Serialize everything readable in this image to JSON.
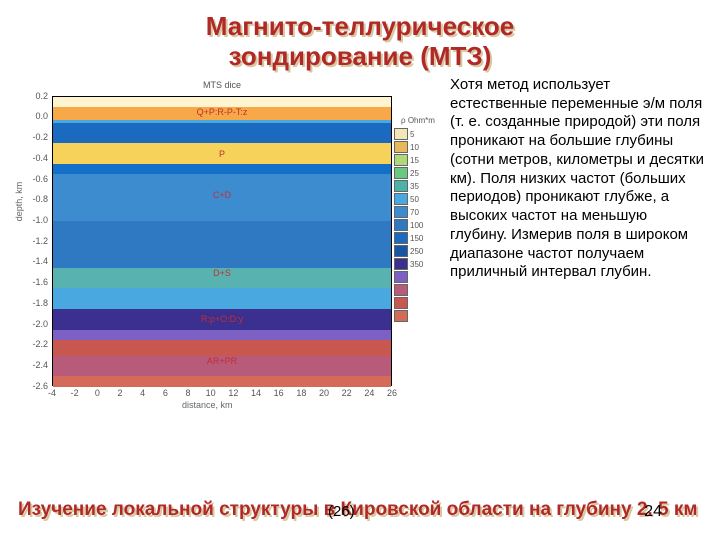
{
  "title_line1": "Магнито-теллурическое",
  "title_line2": "зондирование (МТЗ)",
  "title_color": "#b02828",
  "title_shadow": "#d8c8a0",
  "paragraph": "Хотя метод использует естественные переменные э/м поля (т. е. созданные природой) эти поля проникают на большие глубины (сотни метров, километры и десятки км). Поля низких частот (больших периодов) проникают глубже, а высоких частот на меньшую глубину. Измерив поля в широком диапазоне частот получаем приличный интервал глубин.",
  "caption_text": "Изучение локальной структуры в Кировской области на глубину 2. 5 км",
  "caption_color": "#b02828",
  "page_ref": "(26)",
  "page_num": "24",
  "chart": {
    "title": "MTS dice",
    "xlabel": "distance, km",
    "ylabel": "depth, km",
    "xlim": [
      -4,
      26
    ],
    "ylim_top": 0.2,
    "ylim_bottom": -2.6,
    "xtick_vals": [
      -4,
      -2,
      0,
      2,
      4,
      6,
      8,
      10,
      12,
      14,
      16,
      18,
      20,
      22,
      24,
      26
    ],
    "ytick_vals": [
      0.2,
      0.0,
      -0.2,
      -0.4,
      -0.6,
      -0.8,
      -1.0,
      -1.2,
      -1.4,
      -1.6,
      -1.8,
      -2.0,
      -2.2,
      -2.4,
      -2.6
    ],
    "bands": [
      {
        "from": 0.2,
        "to": 0.1,
        "color": "#fff4d0"
      },
      {
        "from": 0.1,
        "to": -0.02,
        "color": "#f7a848"
      },
      {
        "from": -0.02,
        "to": -0.05,
        "color": "#4aa8e0"
      },
      {
        "from": -0.05,
        "to": -0.25,
        "color": "#1a6bbf"
      },
      {
        "from": -0.25,
        "to": -0.45,
        "color": "#f6d25a"
      },
      {
        "from": -0.45,
        "to": -0.55,
        "color": "#1270c8"
      },
      {
        "from": -0.55,
        "to": -1.0,
        "color": "#3c8ccf"
      },
      {
        "from": -1.0,
        "to": -1.45,
        "color": "#2f78c2"
      },
      {
        "from": -1.45,
        "to": -1.65,
        "color": "#58b3b0"
      },
      {
        "from": -1.65,
        "to": -1.85,
        "color": "#4aa8e0"
      },
      {
        "from": -1.85,
        "to": -2.05,
        "color": "#3b2f8f"
      },
      {
        "from": -2.05,
        "to": -2.15,
        "color": "#7c60c4"
      },
      {
        "from": -2.15,
        "to": -2.3,
        "color": "#c7574f"
      },
      {
        "from": -2.3,
        "to": -2.5,
        "color": "#b85a7a"
      },
      {
        "from": -2.5,
        "to": -2.6,
        "color": "#d46a5a"
      }
    ],
    "labels": [
      {
        "text": "Q+P:R-P-T:z",
        "y": 0.05
      },
      {
        "text": "P",
        "y": -0.35
      },
      {
        "text": "C+D",
        "y": -0.75
      },
      {
        "text": "D+S",
        "y": -1.5
      },
      {
        "text": "R:p+O:D:y",
        "y": -1.95
      },
      {
        "text": "AR+PR",
        "y": -2.35
      }
    ],
    "legend_title": "ρ Ohm*m",
    "legend": [
      {
        "c": "#f3e7b8",
        "v": "5"
      },
      {
        "c": "#e8b85a",
        "v": "10"
      },
      {
        "c": "#b0d87a",
        "v": "15"
      },
      {
        "c": "#6ac980",
        "v": "25"
      },
      {
        "c": "#4ab3a8",
        "v": "35"
      },
      {
        "c": "#4aa8e0",
        "v": "50"
      },
      {
        "c": "#3c8ccf",
        "v": "70"
      },
      {
        "c": "#2f78c2",
        "v": "100"
      },
      {
        "c": "#1a6bbf",
        "v": "150"
      },
      {
        "c": "#1756a3",
        "v": "250"
      },
      {
        "c": "#3b2f8f",
        "v": "350"
      },
      {
        "c": "#7c60c4",
        "v": ""
      },
      {
        "c": "#b85a7a",
        "v": ""
      },
      {
        "c": "#c7574f",
        "v": ""
      },
      {
        "c": "#d46a5a",
        "v": ""
      }
    ]
  }
}
